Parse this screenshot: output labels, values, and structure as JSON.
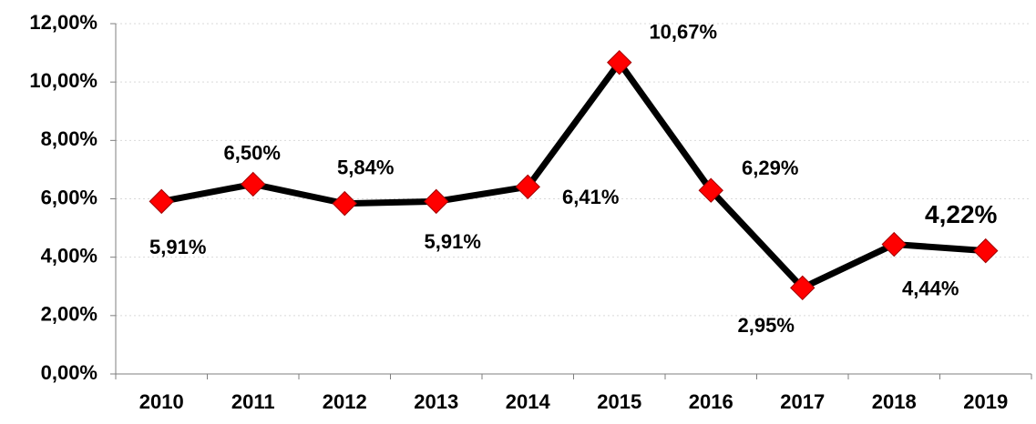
{
  "chart_data": {
    "type": "line",
    "categories": [
      "2010",
      "2011",
      "2012",
      "2013",
      "2014",
      "2015",
      "2016",
      "2017",
      "2018",
      "2019"
    ],
    "values": [
      5.91,
      6.5,
      5.84,
      5.91,
      6.41,
      10.67,
      6.29,
      2.95,
      4.44,
      4.22
    ],
    "value_labels": [
      "5,91%",
      "6,50%",
      "5,84%",
      "5,91%",
      "6,41%",
      "10,67%",
      "6,29%",
      "2,95%",
      "4,44%",
      "4,22%"
    ],
    "value_label_colors": [
      "#000000",
      "#000000",
      "#000000",
      "#000000",
      "#000000",
      "#000000",
      "#000000",
      "#000000",
      "#c00000",
      "#c00000"
    ],
    "color": "#000000",
    "marker_color": "#ff0000",
    "ylim": [
      0,
      12
    ],
    "yticks": [
      {
        "value": 0,
        "label": "0,00%"
      },
      {
        "value": 2,
        "label": "2,00%"
      },
      {
        "value": 4,
        "label": "4,00%"
      },
      {
        "value": 6,
        "label": "6,00%"
      },
      {
        "value": 8,
        "label": "8,00%"
      },
      {
        "value": 10,
        "label": "10,00%"
      },
      {
        "value": 12,
        "label": "12,00%"
      }
    ],
    "grid": true
  }
}
